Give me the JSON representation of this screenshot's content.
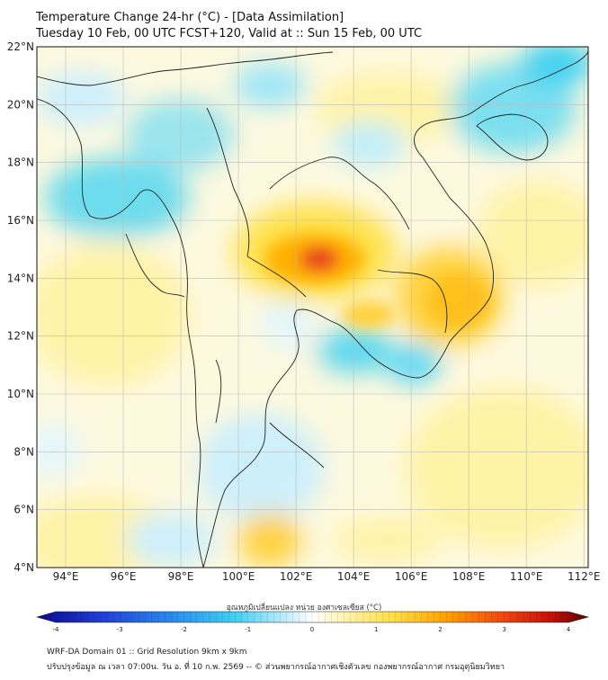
{
  "header": {
    "title_line1": "Temperature Change 24-hr (°C) - [Data Assimilation]",
    "title_line2": "Tuesday 10 Feb, 00 UTC FCST+120, Valid at :: Sun 15 Feb, 00 UTC"
  },
  "map": {
    "lat_labels": [
      "22°N",
      "20°N",
      "18°N",
      "16°N",
      "14°N",
      "12°N",
      "10°N",
      "8°N",
      "6°N",
      "4°N"
    ],
    "lon_labels": [
      "94°E",
      "96°E",
      "98°E",
      "100°E",
      "102°E",
      "104°E",
      "106°E",
      "108°E",
      "110°E",
      "112°E"
    ],
    "colors": {
      "warm_max": "#e8411a",
      "warm_mid": "#ffb000",
      "warm_low": "#fff3a8",
      "cool_low": "#cdeffc",
      "cool_mid": "#3fd1f2",
      "coast": "#222222"
    }
  },
  "colorbar": {
    "title": "อุณหภูมิเปลี่ยนแปลง หน่วย องศาเซลเซียส (°C)",
    "ticks": [
      "-4",
      "-3",
      "-2",
      "-1",
      "0",
      "1",
      "2",
      "3",
      "4"
    ],
    "min": -4,
    "max": 4
  },
  "footer": {
    "line1": "WRF-DA Domain 01 :: Grid Resolution 9km x 9km",
    "line2": "ปรับปรุงข้อมูล ณ เวลา 07:00น. วัน อ. ที่ 10 ก.พ. 2569 -- © ส่วนพยากรณ์อากาศเชิงตัวเลข กองพยากรณ์อากาศ กรมอุตุนิยมวิทยา"
  }
}
